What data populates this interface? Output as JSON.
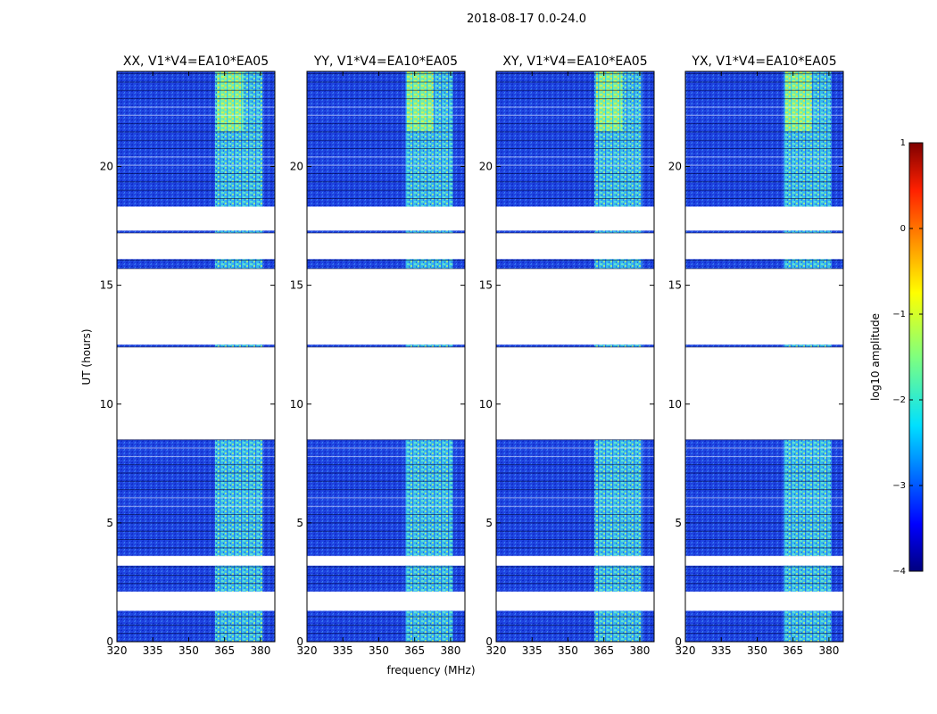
{
  "figure_title": "2018-08-17 0.0-24.0",
  "chart_data": {
    "type": "heatmap",
    "panels": [
      {
        "title": "XX, V1*V4=EA10*EA05"
      },
      {
        "title": "YY, V1*V4=EA10*EA05"
      },
      {
        "title": "XY, V1*V4=EA10*EA05"
      },
      {
        "title": "YX, V1*V4=EA10*EA05"
      }
    ],
    "xlabel": "frequency (MHz)",
    "ylabel": "UT (hours)",
    "xlim": [
      320,
      386
    ],
    "ylim": [
      0,
      24
    ],
    "xticks": [
      320,
      335,
      350,
      365,
      380
    ],
    "yticks": [
      0,
      5,
      10,
      15,
      20
    ],
    "rfi_band_mhz": [
      361,
      381
    ],
    "data_time_ranges_hours": [
      [
        0.0,
        1.3
      ],
      [
        2.1,
        3.2
      ],
      [
        3.6,
        8.5
      ],
      [
        12.4,
        12.5
      ],
      [
        15.7,
        16.1
      ],
      [
        17.2,
        17.3
      ],
      [
        18.3,
        24.0
      ]
    ],
    "colorbar": {
      "label": "log10 amplitude",
      "range": [
        -4,
        1
      ],
      "ticks": [
        1,
        0,
        -1,
        -2,
        -3,
        -4
      ],
      "colormap": "jet"
    }
  }
}
